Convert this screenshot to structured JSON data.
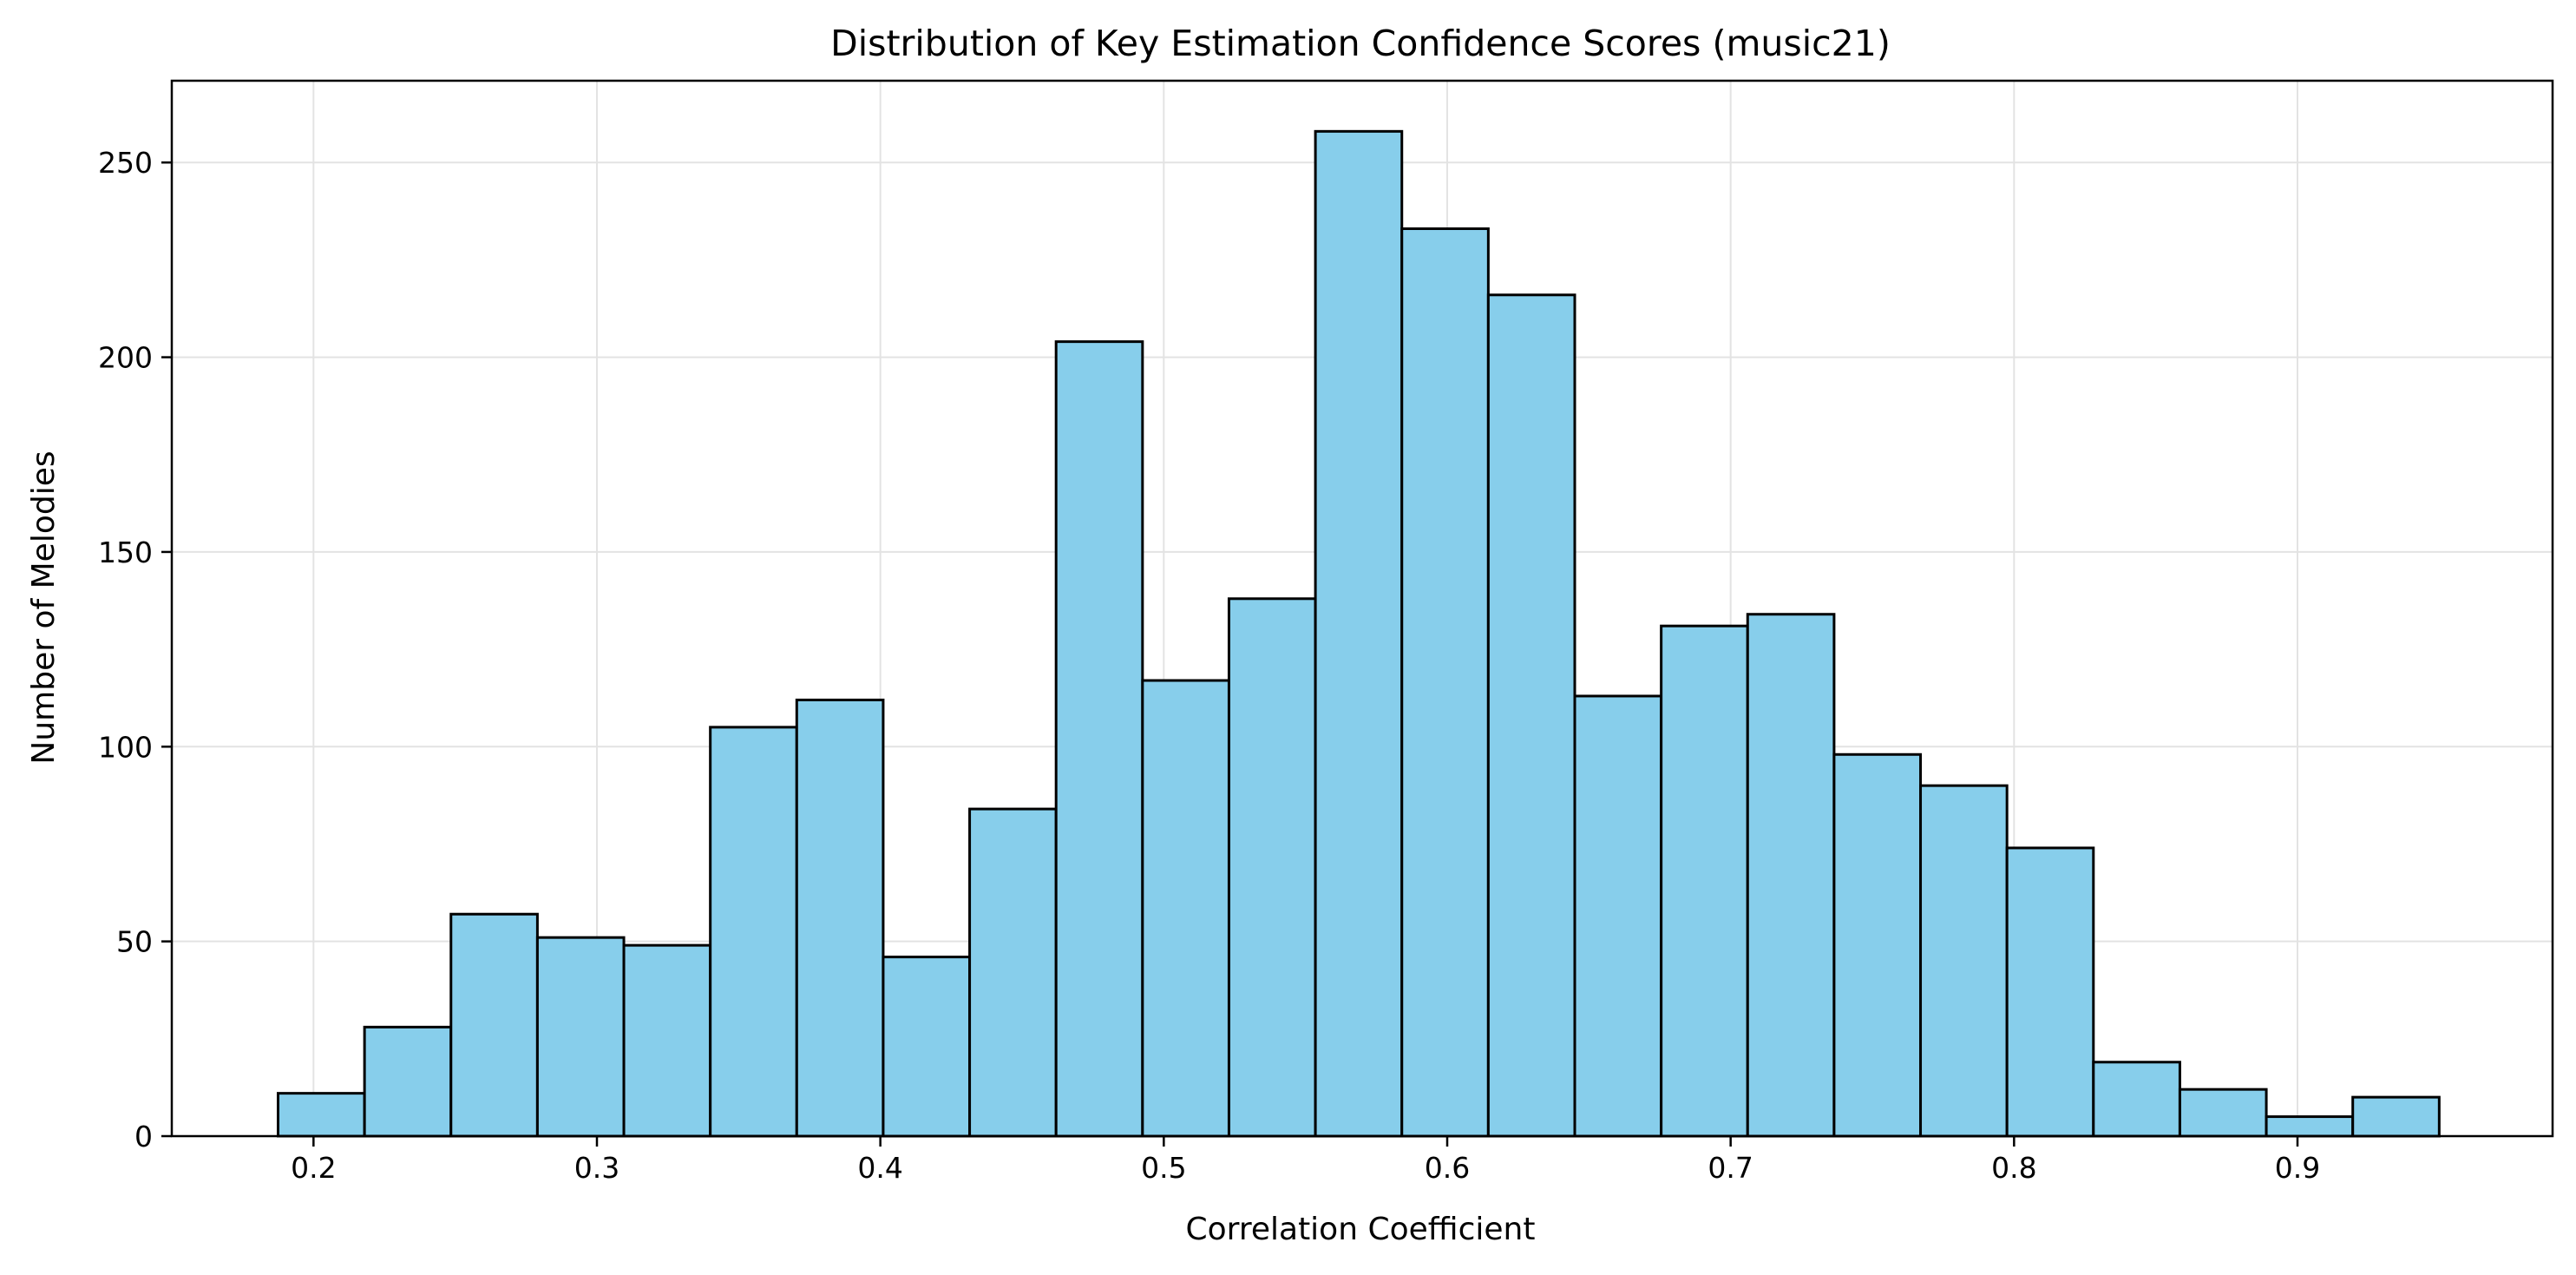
{
  "chart_data": {
    "type": "bar",
    "title": "Distribution of Key Estimation Confidence Scores (music21)",
    "xlabel": "Correlation Coefficient",
    "ylabel": "Number of Melodies",
    "xlim": [
      0.15,
      0.99
    ],
    "ylim": [
      0,
      271
    ],
    "xticks": [
      0.2,
      0.3,
      0.4,
      0.5,
      0.6,
      0.7,
      0.8,
      0.9
    ],
    "xtick_labels": [
      "0.2",
      "0.3",
      "0.4",
      "0.5",
      "0.6",
      "0.7",
      "0.8",
      "0.9"
    ],
    "yticks": [
      0,
      50,
      100,
      150,
      200,
      250
    ],
    "ytick_labels": [
      "0",
      "50",
      "100",
      "150",
      "200",
      "250"
    ],
    "grid": true,
    "bin_edges": [
      0.1875,
      0.218,
      0.2485,
      0.279,
      0.3095,
      0.34,
      0.3705,
      0.401,
      0.4315,
      0.462,
      0.4925,
      0.523,
      0.5535,
      0.584,
      0.6145,
      0.645,
      0.6755,
      0.706,
      0.7365,
      0.767,
      0.7975,
      0.828,
      0.8585,
      0.889,
      0.9195,
      0.95
    ],
    "values": [
      11,
      28,
      57,
      51,
      49,
      105,
      112,
      46,
      84,
      204,
      117,
      138,
      258,
      233,
      216,
      113,
      131,
      134,
      98,
      90,
      74,
      19,
      12,
      5,
      10
    ],
    "colors": {
      "bar_fill": "#87CEEB",
      "bar_edge": "#000000",
      "grid": "#e3e3e3"
    }
  }
}
